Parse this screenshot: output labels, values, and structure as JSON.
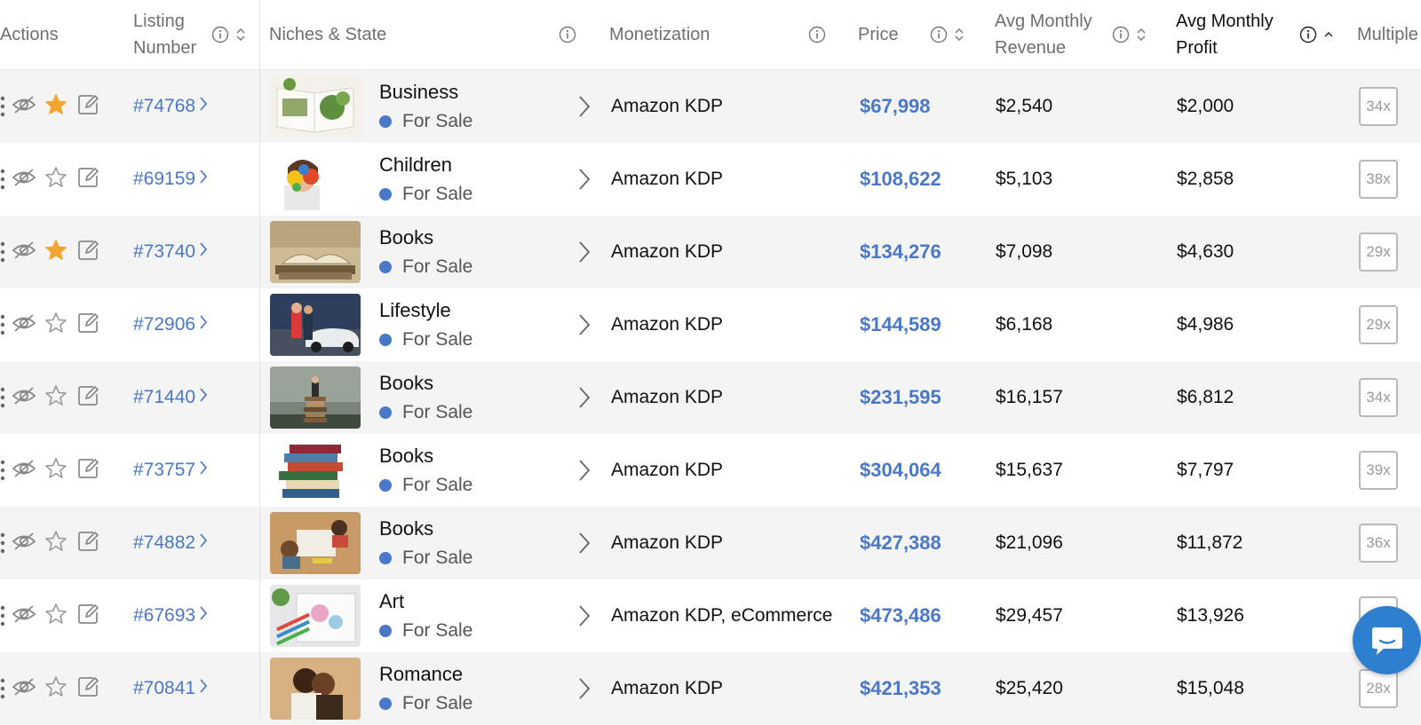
{
  "header": {
    "actions": "Actions",
    "listing_number_1": "Listing",
    "listing_number_2": "Number",
    "niches_state": "Niches & State",
    "monetization": "Monetization",
    "price": "Price",
    "avg_rev_1": "Avg Monthly",
    "avg_rev_2": "Revenue",
    "avg_profit_1": "Avg Monthly",
    "avg_profit_2": "Profit",
    "multiple": "Multiple"
  },
  "colors": {
    "accent": "#4a78c8",
    "star_active": "#f2a531",
    "chat": "#2f7fd1"
  },
  "rows": [
    {
      "listing": "#74768",
      "niche": "Business",
      "state": "For Sale",
      "monetization": "Amazon KDP",
      "price": "$67,998",
      "revenue": "$2,540",
      "profit": "$2,000",
      "multiple": "34x",
      "starred": true,
      "thumb": "open-book-with-plants"
    },
    {
      "listing": "#69159",
      "niche": "Children",
      "state": "For Sale",
      "monetization": "Amazon KDP",
      "price": "$108,622",
      "revenue": "$5,103",
      "profit": "$2,858",
      "multiple": "38x",
      "starred": false,
      "thumb": "child-with-painted-hands"
    },
    {
      "listing": "#73740",
      "niche": "Books",
      "state": "For Sale",
      "monetization": "Amazon KDP",
      "price": "$134,276",
      "revenue": "$7,098",
      "profit": "$4,630",
      "multiple": "29x",
      "starred": true,
      "thumb": "old-open-book"
    },
    {
      "listing": "#72906",
      "niche": "Lifestyle",
      "state": "For Sale",
      "monetization": "Amazon KDP",
      "price": "$144,589",
      "revenue": "$6,168",
      "profit": "$4,986",
      "multiple": "29x",
      "starred": false,
      "thumb": "couple-with-car"
    },
    {
      "listing": "#71440",
      "niche": "Books",
      "state": "For Sale",
      "monetization": "Amazon KDP",
      "price": "$231,595",
      "revenue": "$16,157",
      "profit": "$6,812",
      "multiple": "34x",
      "starred": false,
      "thumb": "person-on-book-stack"
    },
    {
      "listing": "#73757",
      "niche": "Books",
      "state": "For Sale",
      "monetization": "Amazon KDP",
      "price": "$304,064",
      "revenue": "$15,637",
      "profit": "$7,797",
      "multiple": "39x",
      "starred": false,
      "thumb": "stack-of-books"
    },
    {
      "listing": "#74882",
      "niche": "Books",
      "state": "For Sale",
      "monetization": "Amazon KDP",
      "price": "$427,388",
      "revenue": "$21,096",
      "profit": "$11,872",
      "multiple": "36x",
      "starred": false,
      "thumb": "children-reading-on-floor"
    },
    {
      "listing": "#67693",
      "niche": "Art",
      "state": "For Sale",
      "monetization": "Amazon KDP, eCommerce",
      "price": "$473,486",
      "revenue": "$29,457",
      "profit": "$13,926",
      "multiple": "",
      "starred": false,
      "thumb": "coloring-pencils"
    },
    {
      "listing": "#70841",
      "niche": "Romance",
      "state": "For Sale",
      "monetization": "Amazon KDP",
      "price": "$421,353",
      "revenue": "$25,420",
      "profit": "$15,048",
      "multiple": "28x",
      "starred": false,
      "thumb": "romantic-couple"
    }
  ]
}
